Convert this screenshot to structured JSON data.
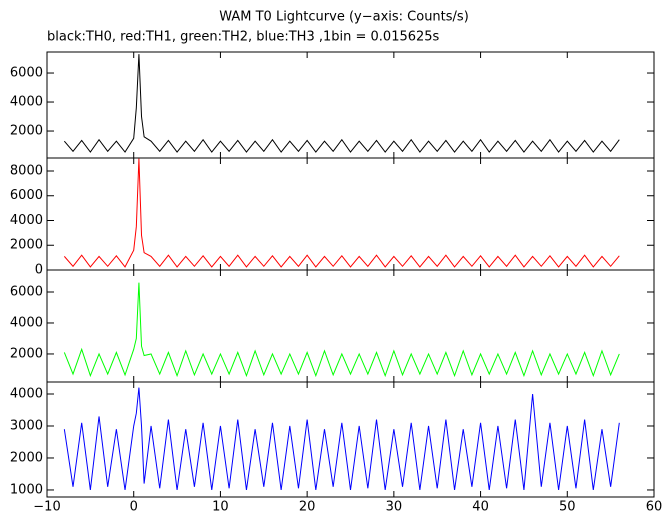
{
  "chart_data": [
    {
      "type": "line",
      "title": "WAM T0 Lightcurve (y−axis: Counts/s)",
      "subtitle": "black:TH0, red:TH1, green:TH2, blue:TH3 ,1bin = 0.015625s",
      "color": "#000000",
      "xlim": [
        -10,
        60
      ],
      "xticks": [
        {
          "value": -10,
          "label": "−10"
        },
        0,
        10,
        20,
        30,
        40,
        50,
        60
      ],
      "ylim": [
        140,
        7450
      ],
      "yticks": [
        2000,
        4000,
        6000
      ],
      "x": [
        -8,
        -7,
        -6,
        -5,
        -4,
        -3,
        -2,
        -1,
        0,
        0.3,
        0.6,
        0.9,
        1.2,
        2,
        3,
        4,
        5,
        6,
        7,
        8,
        9,
        10,
        11,
        12,
        13,
        14,
        15,
        16,
        17,
        18,
        19,
        20,
        21,
        22,
        23,
        24,
        25,
        26,
        27,
        28,
        29,
        30,
        31,
        32,
        33,
        34,
        35,
        36,
        37,
        38,
        39,
        40,
        41,
        42,
        43,
        44,
        45,
        46,
        47,
        48,
        49,
        50,
        51,
        52,
        53,
        54,
        55,
        56
      ],
      "values": [
        1300,
        600,
        1350,
        550,
        1400,
        600,
        1300,
        550,
        1500,
        3600,
        7300,
        3000,
        1600,
        1300,
        600,
        1350,
        550,
        1300,
        600,
        1400,
        550,
        1300,
        600,
        1350,
        550,
        1300,
        600,
        1400,
        550,
        1300,
        600,
        1350,
        550,
        1300,
        600,
        1400,
        550,
        1300,
        600,
        1350,
        550,
        1300,
        600,
        1400,
        550,
        1300,
        600,
        1350,
        550,
        1300,
        600,
        1400,
        550,
        1300,
        600,
        1350,
        550,
        1300,
        600,
        1400,
        550,
        1300,
        600,
        1350,
        550,
        1300,
        600,
        1400
      ]
    },
    {
      "type": "line",
      "color": "#ff0000",
      "xlim": [
        -10,
        60
      ],
      "xticks": [
        {
          "value": -10,
          "label": "−10"
        },
        0,
        10,
        20,
        30,
        40,
        50,
        60
      ],
      "ylim": [
        0,
        9050
      ],
      "yticks": [
        0,
        2000,
        4000,
        6000,
        8000
      ],
      "x": [
        -8,
        -7,
        -6,
        -5,
        -4,
        -3,
        -2,
        -1,
        0,
        0.3,
        0.6,
        0.9,
        1.2,
        2,
        3,
        4,
        5,
        6,
        7,
        8,
        9,
        10,
        11,
        12,
        13,
        14,
        15,
        16,
        17,
        18,
        19,
        20,
        21,
        22,
        23,
        24,
        25,
        26,
        27,
        28,
        29,
        30,
        31,
        32,
        33,
        34,
        35,
        36,
        37,
        38,
        39,
        40,
        41,
        42,
        43,
        44,
        45,
        46,
        47,
        48,
        49,
        50,
        51,
        52,
        53,
        54,
        55,
        56
      ],
      "values": [
        1100,
        300,
        1200,
        250,
        1100,
        300,
        1150,
        250,
        1600,
        3500,
        9000,
        2800,
        1400,
        1100,
        300,
        1200,
        250,
        1100,
        300,
        1150,
        250,
        1100,
        300,
        1200,
        250,
        1100,
        300,
        1150,
        250,
        1100,
        300,
        1200,
        250,
        1100,
        300,
        1150,
        250,
        1100,
        300,
        1200,
        250,
        1100,
        300,
        1150,
        250,
        1100,
        300,
        1200,
        250,
        1100,
        300,
        1150,
        250,
        1100,
        300,
        1200,
        250,
        1100,
        300,
        1150,
        250,
        1100,
        300,
        1200,
        250,
        1100,
        300,
        1150
      ]
    },
    {
      "type": "line",
      "color": "#00ff00",
      "xlim": [
        -10,
        60
      ],
      "xticks": [
        {
          "value": -10,
          "label": "−10"
        },
        0,
        10,
        20,
        30,
        40,
        50,
        60
      ],
      "ylim": [
        190,
        7420
      ],
      "yticks": [
        2000,
        4000,
        6000
      ],
      "x": [
        -8,
        -7,
        -6,
        -5,
        -4,
        -3,
        -2,
        -1,
        0,
        0.3,
        0.6,
        0.9,
        1.2,
        2,
        3,
        4,
        5,
        6,
        7,
        8,
        9,
        10,
        11,
        12,
        13,
        14,
        15,
        16,
        17,
        18,
        19,
        20,
        21,
        22,
        23,
        24,
        25,
        26,
        27,
        28,
        29,
        30,
        31,
        32,
        33,
        34,
        35,
        36,
        37,
        38,
        39,
        40,
        41,
        42,
        43,
        44,
        45,
        46,
        47,
        48,
        49,
        50,
        51,
        52,
        53,
        54,
        55,
        56
      ],
      "values": [
        2100,
        700,
        2300,
        600,
        2000,
        700,
        2100,
        650,
        2300,
        3000,
        6600,
        2500,
        1900,
        2000,
        700,
        2100,
        600,
        2200,
        650,
        2000,
        700,
        2000,
        700,
        2100,
        600,
        2200,
        650,
        2000,
        700,
        2000,
        700,
        2100,
        600,
        2200,
        650,
        2000,
        700,
        2000,
        700,
        2100,
        600,
        2200,
        650,
        2000,
        700,
        2000,
        700,
        2100,
        600,
        2200,
        650,
        2000,
        700,
        2000,
        700,
        2100,
        600,
        2200,
        650,
        2000,
        700,
        2000,
        700,
        2100,
        600,
        2200,
        650,
        2000
      ]
    },
    {
      "type": "line",
      "color": "#0000ff",
      "xlim": [
        -10,
        60
      ],
      "xticks": [
        {
          "value": -10,
          "label": "−10"
        },
        0,
        10,
        20,
        30,
        40,
        50,
        60
      ],
      "ylim": [
        780,
        4375
      ],
      "yticks": [
        1000,
        2000,
        3000,
        4000
      ],
      "x": [
        -8,
        -7,
        -6,
        -5,
        -4,
        -3,
        -2,
        -1,
        0,
        0.3,
        0.6,
        0.9,
        1.2,
        2,
        3,
        4,
        5,
        6,
        7,
        8,
        9,
        10,
        11,
        12,
        13,
        14,
        15,
        16,
        17,
        18,
        19,
        20,
        21,
        22,
        23,
        24,
        25,
        26,
        27,
        28,
        29,
        30,
        31,
        32,
        33,
        34,
        35,
        36,
        37,
        38,
        39,
        40,
        41,
        42,
        43,
        44,
        45,
        46,
        47,
        48,
        49,
        50,
        51,
        52,
        53,
        54,
        55,
        56
      ],
      "values": [
        2900,
        1100,
        3100,
        1000,
        3300,
        1100,
        2900,
        1000,
        3000,
        3400,
        4200,
        3000,
        1200,
        3000,
        1050,
        3200,
        1000,
        2900,
        1100,
        3100,
        1000,
        3000,
        1050,
        3200,
        1000,
        2900,
        1100,
        3100,
        1000,
        3000,
        1050,
        3200,
        1000,
        2900,
        1100,
        3100,
        1000,
        3000,
        1050,
        3200,
        1000,
        2900,
        1100,
        3100,
        1000,
        3000,
        1050,
        3200,
        1000,
        2900,
        1100,
        3100,
        1000,
        3000,
        1050,
        3200,
        1000,
        4000,
        1100,
        3100,
        1000,
        3000,
        1050,
        3200,
        1000,
        2900,
        1100,
        3100
      ]
    }
  ]
}
